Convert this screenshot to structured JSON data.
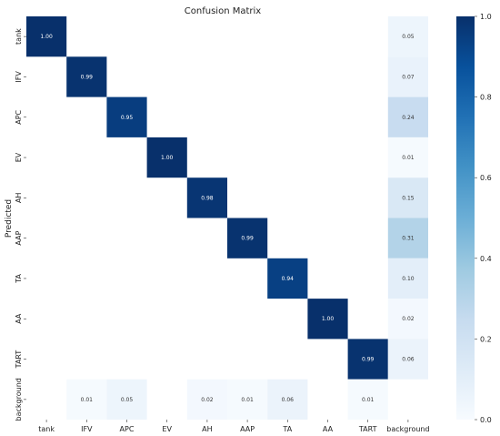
{
  "chart_data": {
    "type": "heatmap",
    "title": "Confusion Matrix",
    "xlabel": "",
    "ylabel": "Predicted",
    "x_categories": [
      "tank",
      "IFV",
      "APC",
      "EV",
      "AH",
      "AAP",
      "TA",
      "AA",
      "TART",
      "background"
    ],
    "y_categories": [
      "tank",
      "IFV",
      "APC",
      "EV",
      "AH",
      "AAP",
      "TA",
      "AA",
      "TART",
      "background"
    ],
    "values": [
      [
        1.0,
        null,
        null,
        null,
        null,
        null,
        null,
        null,
        null,
        0.05
      ],
      [
        null,
        0.99,
        null,
        null,
        null,
        null,
        null,
        null,
        null,
        0.07
      ],
      [
        null,
        null,
        0.95,
        null,
        null,
        null,
        null,
        null,
        null,
        0.24
      ],
      [
        null,
        null,
        null,
        1.0,
        null,
        null,
        null,
        null,
        null,
        0.01
      ],
      [
        null,
        null,
        null,
        null,
        0.98,
        null,
        null,
        null,
        null,
        0.15
      ],
      [
        null,
        null,
        null,
        null,
        null,
        0.99,
        null,
        null,
        null,
        0.31
      ],
      [
        null,
        null,
        null,
        null,
        null,
        null,
        0.94,
        null,
        null,
        0.1
      ],
      [
        null,
        null,
        null,
        null,
        null,
        null,
        null,
        1.0,
        null,
        0.02
      ],
      [
        null,
        null,
        null,
        null,
        null,
        null,
        null,
        null,
        0.99,
        0.06
      ],
      [
        null,
        0.01,
        0.05,
        null,
        0.02,
        0.01,
        0.06,
        null,
        0.01,
        null
      ]
    ],
    "value_format": "0.00",
    "vmin": 0.0,
    "vmax": 1.0,
    "colormap": "Blues",
    "colorbar_ticks": [
      "0.0",
      "0.2",
      "0.4",
      "0.6",
      "0.8",
      "1.0"
    ],
    "colorbar_tick_values": [
      0.0,
      0.2,
      0.4,
      0.6,
      0.8,
      1.0
    ],
    "grid": false
  }
}
